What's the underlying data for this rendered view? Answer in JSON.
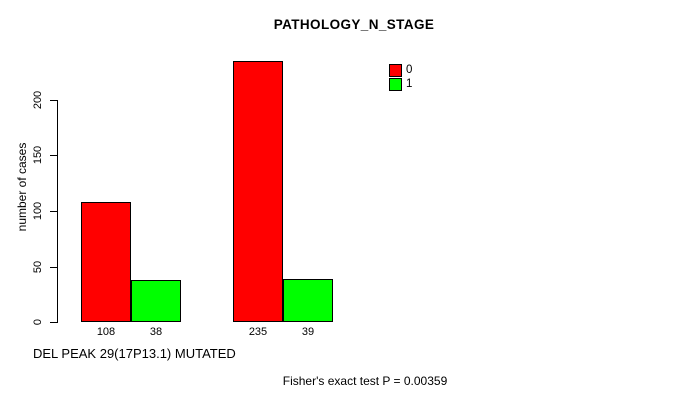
{
  "chart_data": {
    "type": "bar",
    "title": "PATHOLOGY_N_STAGE",
    "ylabel": "number of cases",
    "xlabel": "DEL PEAK 29(17P13.1) MUTATED",
    "footnote": "Fisher's exact test P = 0.00359",
    "yticks": [
      0,
      50,
      100,
      150,
      200
    ],
    "ylim": [
      0,
      240
    ],
    "grid": false,
    "legend_position": "top-right",
    "legend": [
      {
        "label": "0",
        "color": "#FF0000"
      },
      {
        "label": "1",
        "color": "#00FF00"
      }
    ],
    "groups": [
      {
        "bars": [
          {
            "series": "0",
            "value": 108,
            "tick_label": "108",
            "color": "#FF0000"
          },
          {
            "series": "1",
            "value": 38,
            "tick_label": "38",
            "color": "#00FF00"
          }
        ]
      },
      {
        "bars": [
          {
            "series": "0",
            "value": 235,
            "tick_label": "235",
            "color": "#FF0000"
          },
          {
            "series": "1",
            "value": 39,
            "tick_label": "39",
            "color": "#00FF00"
          }
        ]
      }
    ],
    "colors": {
      "bar_border": "#000000",
      "axis": "#000000",
      "text": "#000000",
      "background": "#FFFFFF"
    }
  }
}
